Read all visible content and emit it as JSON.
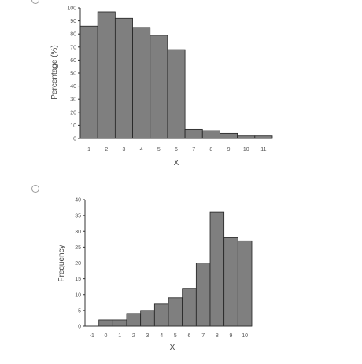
{
  "chart_data": [
    {
      "type": "bar",
      "categories": [
        "1",
        "2",
        "3",
        "4",
        "5",
        "6",
        "7",
        "8",
        "9",
        "10",
        "11"
      ],
      "values": [
        86,
        97,
        92,
        85,
        79,
        68,
        7,
        6,
        4,
        2,
        2
      ],
      "xlabel": "X",
      "ylabel": "Percentage (%)",
      "ylim": [
        0,
        100
      ],
      "yticks": [
        0,
        10,
        20,
        30,
        40,
        50,
        60,
        70,
        80,
        90,
        100
      ],
      "grid": false,
      "bar_color": "#7f7f7f"
    },
    {
      "type": "bar",
      "categories": [
        "-1",
        "0",
        "1",
        "2",
        "3",
        "4",
        "5",
        "6",
        "7",
        "8",
        "9",
        "10"
      ],
      "values": [
        0,
        2,
        2,
        4,
        5,
        7,
        9,
        12,
        20,
        36,
        28,
        27
      ],
      "xlabel": "X",
      "ylabel": "Frequency",
      "ylim": [
        0,
        40
      ],
      "yticks": [
        0,
        5,
        10,
        15,
        20,
        25,
        30,
        35,
        40
      ],
      "grid": false,
      "bar_color": "#7f7f7f"
    }
  ]
}
